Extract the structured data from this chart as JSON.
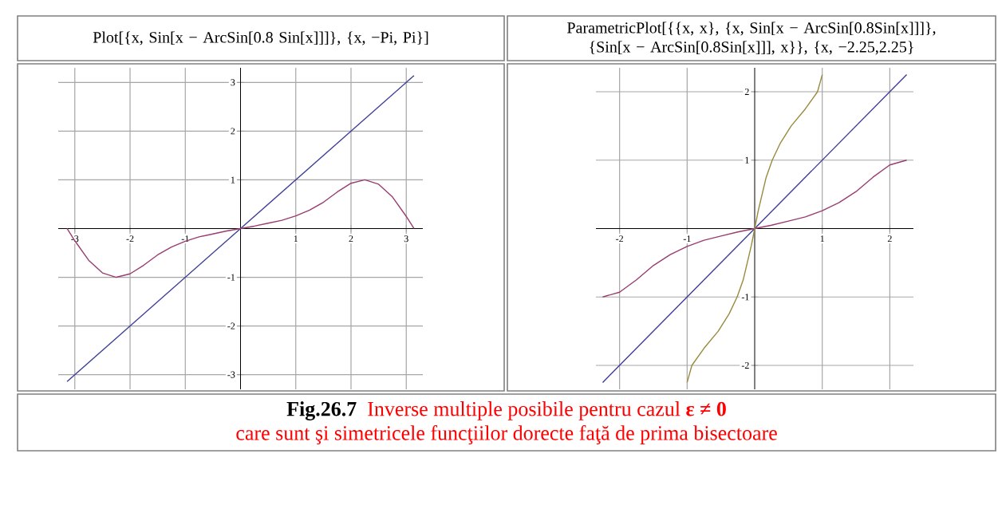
{
  "chart_data": [
    {
      "type": "line",
      "title": "Plot[{x, Sin[x − ArcSin[0.8 Sin[x]]]}, {x, −Pi, Pi}]",
      "xlim": [
        -3.3,
        3.3
      ],
      "ylim": [
        -3.3,
        3.3
      ],
      "xticks": [
        -3,
        -2,
        -1,
        1,
        2,
        3
      ],
      "yticks": [
        -3,
        -2,
        -1,
        1,
        2,
        3
      ],
      "grid": true,
      "series": [
        {
          "color": "#3d3d99",
          "x": [
            -3.14,
            3.14
          ],
          "values": [
            -3.14,
            3.14
          ]
        },
        {
          "color": "#993d70",
          "x": [
            -3.14,
            -3,
            -2.75,
            -2.5,
            -2.25,
            -2,
            -1.75,
            -1.5,
            -1.25,
            -1,
            -0.75,
            -0.5,
            -0.25,
            0,
            0.25,
            0.5,
            0.75,
            1,
            1.25,
            1.5,
            1.75,
            2,
            2.25,
            2.5,
            2.75,
            3,
            3.14
          ],
          "values": [
            0,
            -0.25,
            -0.65,
            -0.91,
            -1,
            -0.93,
            -0.75,
            -0.54,
            -0.38,
            -0.26,
            -0.17,
            -0.11,
            -0.05,
            0,
            0.05,
            0.11,
            0.17,
            0.26,
            0.38,
            0.54,
            0.75,
            0.93,
            1,
            0.91,
            0.65,
            0.25,
            0
          ]
        }
      ],
      "annotations": [
        "**Fig.26.7**",
        "Inverse multiple posibile pentru cazul **ε ≠ 0**",
        "care sunt şi simetricele funcţiilor dorecte faţă de prima bisectoare"
      ]
    },
    {
      "type": "line",
      "title": "ParametricPlot[{{x, x}, {x, Sin[x − ArcSin[0.8Sin[x]]]}, {Sin[x − ArcSin[0.8Sin[x]]], x}}, {x, −2.25,2.25}",
      "xlim": [
        -2.35,
        2.35
      ],
      "ylim": [
        -2.35,
        2.35
      ],
      "xticks": [
        -2,
        -1,
        1,
        2
      ],
      "yticks": [
        -2,
        -1,
        1,
        2
      ],
      "grid": true,
      "series": [
        {
          "color": "#3d3d99",
          "x": [
            -2.25,
            2.25
          ],
          "values": [
            -2.25,
            2.25
          ]
        },
        {
          "color": "#993d70",
          "x": [
            -2.25,
            -2,
            -1.75,
            -1.5,
            -1.25,
            -1,
            -0.75,
            -0.5,
            -0.25,
            0,
            0.25,
            0.5,
            0.75,
            1,
            1.25,
            1.5,
            1.75,
            2,
            2.25
          ],
          "values": [
            -1,
            -0.93,
            -0.75,
            -0.54,
            -0.38,
            -0.26,
            -0.17,
            -0.11,
            -0.05,
            0,
            0.05,
            0.11,
            0.17,
            0.26,
            0.38,
            0.54,
            0.75,
            0.93,
            1
          ]
        },
        {
          "color": "#998a3d",
          "x": [
            -1,
            -0.93,
            -0.75,
            -0.54,
            -0.38,
            -0.26,
            -0.17,
            -0.11,
            -0.05,
            0,
            0.05,
            0.11,
            0.17,
            0.26,
            0.38,
            0.54,
            0.75,
            0.93,
            1
          ],
          "values": [
            -2.25,
            -2,
            -1.75,
            -1.5,
            -1.25,
            -1,
            -0.75,
            -0.5,
            -0.25,
            0,
            0.25,
            0.5,
            0.75,
            1,
            1.25,
            1.5,
            1.75,
            2,
            2.25
          ]
        }
      ]
    }
  ]
}
